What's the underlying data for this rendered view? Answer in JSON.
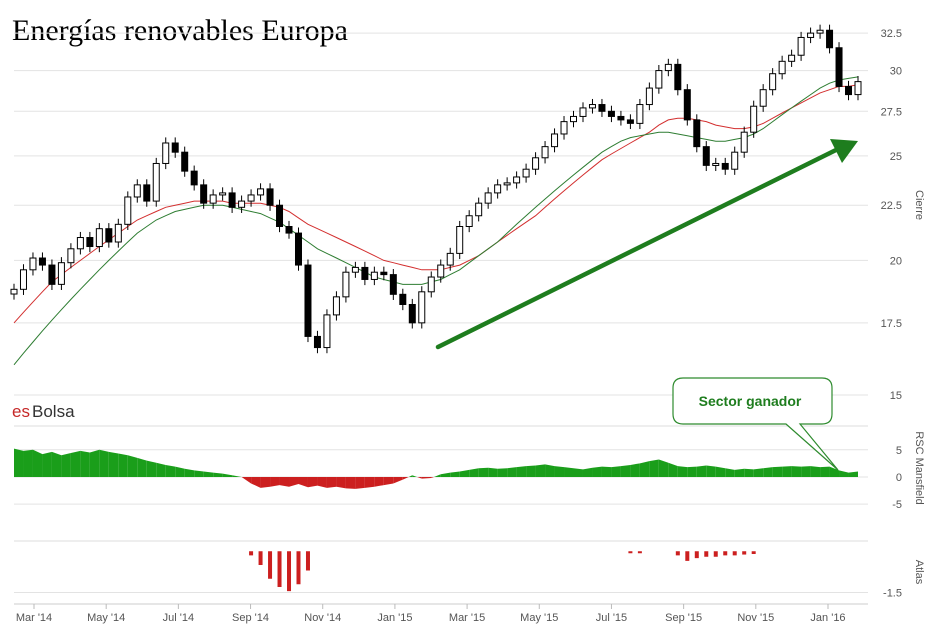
{
  "chart_data": [
    {
      "type": "candlestick",
      "title": "Energías renovables Europa",
      "watermark": "esBolsa",
      "ylabel": "Cierre",
      "y_scale": "log",
      "ylim": [
        15,
        34
      ],
      "y_ticks": [
        15,
        17.5,
        20,
        22.5,
        25,
        27.5,
        30,
        32.5
      ],
      "x_tick_labels": [
        "Mar '14",
        "May '14",
        "Jul '14",
        "Sep '14",
        "Nov '14",
        "Jan '15",
        "Mar '15",
        "May '15",
        "Jul '15",
        "Sep '15",
        "Nov '15",
        "Jan '16"
      ],
      "grid": true,
      "closes": [
        18.8,
        19.6,
        20.1,
        19.8,
        19.0,
        19.9,
        20.5,
        21.0,
        20.6,
        21.4,
        20.8,
        21.6,
        22.9,
        23.5,
        22.7,
        24.6,
        25.7,
        25.2,
        24.2,
        23.5,
        22.6,
        23.0,
        23.1,
        22.4,
        22.7,
        23.0,
        23.3,
        22.5,
        21.5,
        21.2,
        19.8,
        17.0,
        16.6,
        17.8,
        18.5,
        19.5,
        19.7,
        19.2,
        19.5,
        19.4,
        18.6,
        18.2,
        17.5,
        18.7,
        19.3,
        19.8,
        20.3,
        21.5,
        22.0,
        22.6,
        23.1,
        23.5,
        23.6,
        23.9,
        24.3,
        24.9,
        25.5,
        26.2,
        26.9,
        27.2,
        27.7,
        27.9,
        27.5,
        27.2,
        27.0,
        26.8,
        27.9,
        28.9,
        30.0,
        30.4,
        28.8,
        27.0,
        25.5,
        24.5,
        24.6,
        24.3,
        25.2,
        26.3,
        27.8,
        28.8,
        29.8,
        30.6,
        31.0,
        32.2,
        32.5,
        32.7,
        31.5,
        29.0,
        28.5,
        29.3
      ],
      "series": [
        {
          "name": "",
          "color": "#d32f2f",
          "values": [
            17.5,
            17.9,
            18.3,
            18.7,
            19.1,
            19.4,
            19.7,
            20.0,
            20.3,
            20.6,
            20.9,
            21.2,
            21.5,
            21.8,
            22.0,
            22.2,
            22.4,
            22.5,
            22.6,
            22.7,
            22.7,
            22.7,
            22.7,
            22.6,
            22.6,
            22.6,
            22.6,
            22.5,
            22.4,
            22.2,
            21.9,
            21.6,
            21.4,
            21.2,
            21.0,
            20.8,
            20.6,
            20.4,
            20.2,
            20.0,
            19.9,
            19.8,
            19.7,
            19.6,
            19.6,
            19.6,
            19.7,
            19.8,
            20.0,
            20.2,
            20.5,
            20.8,
            21.1,
            21.4,
            21.7,
            22.0,
            22.4,
            22.8,
            23.2,
            23.6,
            24.0,
            24.4,
            24.8,
            25.1,
            25.4,
            25.7,
            26.0,
            26.3,
            26.7,
            27.0,
            27.1,
            27.1,
            27.0,
            26.9,
            26.7,
            26.6,
            26.5,
            26.5,
            26.6,
            26.8,
            27.1,
            27.4,
            27.7,
            28.0,
            28.3,
            28.6,
            28.8,
            29.0,
            29.0,
            29.1
          ]
        },
        {
          "name": "",
          "color": "#2e7d32",
          "values": [
            16.0,
            16.4,
            16.8,
            17.2,
            17.6,
            18.0,
            18.4,
            18.8,
            19.2,
            19.6,
            20.0,
            20.4,
            20.8,
            21.2,
            21.5,
            21.8,
            22.0,
            22.2,
            22.3,
            22.4,
            22.5,
            22.5,
            22.5,
            22.4,
            22.3,
            22.2,
            22.1,
            21.9,
            21.7,
            21.4,
            21.1,
            20.8,
            20.5,
            20.3,
            20.1,
            19.9,
            19.7,
            19.5,
            19.3,
            19.2,
            19.1,
            19.0,
            19.0,
            19.0,
            19.1,
            19.2,
            19.4,
            19.6,
            19.9,
            20.2,
            20.5,
            20.8,
            21.2,
            21.6,
            22.0,
            22.4,
            22.8,
            23.2,
            23.6,
            24.0,
            24.4,
            24.8,
            25.2,
            25.5,
            25.8,
            26.0,
            26.1,
            26.2,
            26.3,
            26.3,
            26.2,
            26.1,
            26.0,
            25.9,
            25.8,
            25.8,
            25.9,
            26.0,
            26.2,
            26.5,
            26.9,
            27.3,
            27.7,
            28.1,
            28.5,
            28.9,
            29.2,
            29.4,
            29.5,
            29.6
          ]
        }
      ]
    },
    {
      "type": "area",
      "ylabel": "RSC Mansfield",
      "ylim": [
        -7,
        9
      ],
      "y_ticks": [
        -5,
        0,
        5
      ],
      "positive_color": "#1a9e1a",
      "negative_color": "#cc1f1f",
      "values": [
        5.2,
        4.8,
        5.0,
        4.2,
        4.6,
        4.0,
        4.4,
        4.8,
        4.5,
        5.0,
        4.6,
        4.3,
        4.0,
        3.5,
        3.0,
        2.6,
        2.2,
        1.9,
        1.5,
        1.2,
        1.0,
        0.8,
        0.6,
        0.3,
        0.0,
        -1.2,
        -2.0,
        -1.8,
        -1.5,
        -1.8,
        -1.3,
        -1.9,
        -1.6,
        -2.0,
        -1.8,
        -2.1,
        -2.2,
        -2.0,
        -1.8,
        -1.5,
        -1.2,
        -0.5,
        0.3,
        -0.3,
        -0.2,
        0.5,
        0.8,
        1.0,
        1.3,
        1.6,
        1.7,
        1.5,
        1.6,
        1.8,
        2.0,
        2.1,
        2.3,
        2.0,
        1.8,
        1.6,
        1.4,
        1.7,
        1.9,
        1.8,
        2.0,
        2.2,
        2.5,
        2.9,
        3.2,
        2.6,
        2.0,
        1.8,
        1.9,
        2.1,
        1.9,
        1.6,
        1.3,
        1.5,
        1.4,
        1.6,
        1.8,
        1.9,
        2.0,
        1.9,
        2.0,
        1.8,
        1.9,
        1.2,
        0.8,
        1.0
      ]
    },
    {
      "type": "bar",
      "ylabel": "Atlas",
      "ylim": [
        -1.7,
        0.3
      ],
      "y_ticks": [
        -1.5
      ],
      "color": "#cc1f1f",
      "values": [
        0,
        0,
        0,
        0,
        0,
        0,
        0,
        0,
        0,
        0,
        0,
        0,
        0,
        0,
        0,
        0,
        0,
        0,
        0,
        0,
        0,
        0,
        0,
        0,
        0,
        -0.15,
        -0.5,
        -1.0,
        -1.3,
        -1.45,
        -1.2,
        -0.7,
        0,
        0,
        0,
        0,
        0,
        0,
        0,
        0,
        0,
        0,
        0,
        0,
        0,
        0,
        0,
        0,
        0,
        0,
        0,
        0,
        0,
        0,
        0,
        0,
        0,
        0,
        0,
        0,
        0,
        0,
        0,
        0,
        0,
        -0.05,
        -0.05,
        0,
        0,
        0,
        -0.15,
        -0.35,
        -0.25,
        -0.2,
        -0.2,
        -0.15,
        -0.15,
        -0.12,
        -0.1,
        0,
        0,
        0,
        0,
        0,
        0,
        0,
        0,
        0,
        0,
        0
      ]
    }
  ],
  "annotation": {
    "text": "Sector ganador",
    "arrow_color": "#1e7d1e"
  }
}
